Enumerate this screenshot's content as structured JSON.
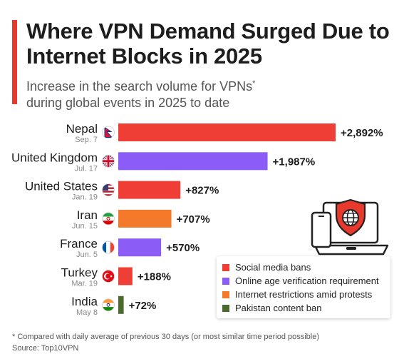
{
  "header": {
    "title": "Where VPN Demand Surged Due to Internet Blocks in 2025",
    "subtitle_main": "Increase in the search volume for VPNs",
    "subtitle_mark": "*",
    "subtitle_rest": "during global events in 2025 to date"
  },
  "colors": {
    "accent": "#e8392d",
    "social": "#ef3e36",
    "age": "#8b5cf6",
    "protest": "#f4792b",
    "pakistan": "#4a6b2d"
  },
  "chart_data": {
    "type": "bar",
    "orientation": "horizontal",
    "categories": [
      "Nepal",
      "United Kingdom",
      "United States",
      "Iran",
      "France",
      "Turkey",
      "India"
    ],
    "dates": [
      "Sep. 7",
      "Jul. 17",
      "Jan. 19",
      "Jun. 15",
      "Jun. 5",
      "Mar. 19",
      "May 8"
    ],
    "values": [
      2892,
      1987,
      827,
      707,
      570,
      188,
      72
    ],
    "value_labels": [
      "+2,892%",
      "+1,987%",
      "+827%",
      "+707%",
      "+570%",
      "+188%",
      "+72%"
    ],
    "reason_keys": [
      "social",
      "age",
      "social",
      "protest",
      "age",
      "social",
      "pakistan"
    ],
    "flag_icons": [
      "nepal-flag-icon",
      "uk-flag-icon",
      "us-flag-icon",
      "iran-flag-icon",
      "france-flag-icon",
      "turkey-flag-icon",
      "india-flag-icon"
    ],
    "xlim": [
      0,
      2892
    ],
    "grid": false,
    "legend_position": "bottom-right"
  },
  "legend": {
    "items": [
      {
        "key": "social",
        "label": "Social media bans"
      },
      {
        "key": "age",
        "label": "Online age verification requirement"
      },
      {
        "key": "protest",
        "label": "Internet restrictions amid protests"
      },
      {
        "key": "pakistan",
        "label": "Pakistan content ban"
      }
    ]
  },
  "footer": {
    "note": "* Compared with daily average of previous 30 days (or most similar time period possible)",
    "source": "Source: Top10VPN"
  },
  "illustration": {
    "icons": [
      "laptop-icon",
      "phone-icon",
      "shield-globe-icon"
    ]
  }
}
